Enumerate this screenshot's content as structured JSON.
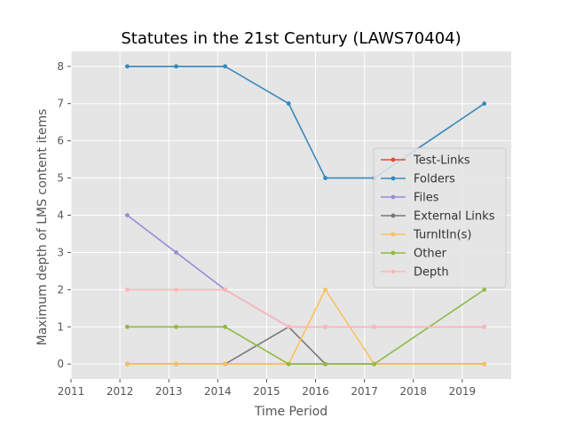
{
  "chart_data": {
    "type": "line",
    "title": "Statutes in the 21st Century (LAWS70404)",
    "xlabel": "Time Period",
    "ylabel": "Maximum depth of LMS content items",
    "xlim": [
      2011,
      2020
    ],
    "ylim": [
      -0.4,
      8.4
    ],
    "xticks": [
      2011,
      2012,
      2013,
      2014,
      2015,
      2016,
      2017,
      2018,
      2019
    ],
    "yticks": [
      0,
      1,
      2,
      3,
      4,
      5,
      6,
      7,
      8
    ],
    "grid": true,
    "legend_position": "center-right",
    "x": [
      2012.15,
      2013.15,
      2014.15,
      2015.45,
      2016.2,
      2017.2,
      2019.45
    ],
    "series": [
      {
        "name": "Test-Links",
        "color": "#e24a33",
        "values": [
          0,
          0,
          0,
          0,
          0,
          0,
          0
        ]
      },
      {
        "name": "Folders",
        "color": "#348abd",
        "values": [
          8,
          8,
          8,
          7,
          5,
          5,
          7
        ]
      },
      {
        "name": "Files",
        "color": "#988ed5",
        "values": [
          4,
          3,
          2,
          1,
          1,
          1,
          1
        ]
      },
      {
        "name": "External Links",
        "color": "#777777",
        "values": [
          0,
          0,
          0,
          1,
          0,
          0,
          0
        ]
      },
      {
        "name": "TurnItIn(s)",
        "color": "#fbc15e",
        "values": [
          0,
          0,
          0,
          0,
          2,
          0,
          0
        ]
      },
      {
        "name": "Other",
        "color": "#8eba42",
        "values": [
          1,
          1,
          1,
          0,
          0,
          0,
          2
        ]
      },
      {
        "name": "Depth",
        "color": "#ffb5b8",
        "values": [
          2,
          2,
          2,
          1,
          1,
          1,
          1
        ]
      }
    ]
  }
}
